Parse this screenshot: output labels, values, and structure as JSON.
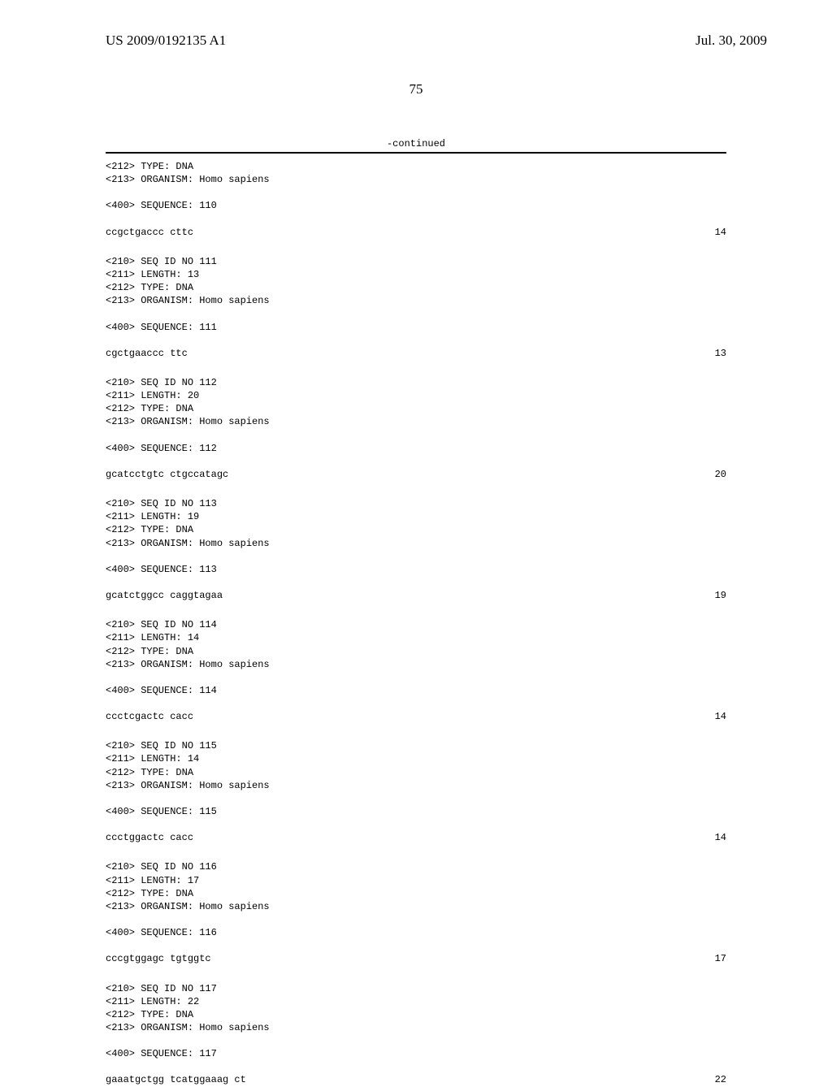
{
  "header": {
    "publication_number": "US 2009/0192135 A1",
    "date": "Jul. 30, 2009"
  },
  "page_number": "75",
  "continued_label": "-continued",
  "sequences": [
    {
      "header_lines": [
        "<212> TYPE: DNA",
        "<213> ORGANISM: Homo sapiens"
      ],
      "sequence_label": "<400> SEQUENCE: 110",
      "sequence_text": "ccgctgaccc cttc",
      "length": "14"
    },
    {
      "header_lines": [
        "<210> SEQ ID NO 111",
        "<211> LENGTH: 13",
        "<212> TYPE: DNA",
        "<213> ORGANISM: Homo sapiens"
      ],
      "sequence_label": "<400> SEQUENCE: 111",
      "sequence_text": "cgctgaaccc ttc",
      "length": "13"
    },
    {
      "header_lines": [
        "<210> SEQ ID NO 112",
        "<211> LENGTH: 20",
        "<212> TYPE: DNA",
        "<213> ORGANISM: Homo sapiens"
      ],
      "sequence_label": "<400> SEQUENCE: 112",
      "sequence_text": "gcatcctgtc ctgccatagc",
      "length": "20"
    },
    {
      "header_lines": [
        "<210> SEQ ID NO 113",
        "<211> LENGTH: 19",
        "<212> TYPE: DNA",
        "<213> ORGANISM: Homo sapiens"
      ],
      "sequence_label": "<400> SEQUENCE: 113",
      "sequence_text": "gcatctggcc caggtagaa",
      "length": "19"
    },
    {
      "header_lines": [
        "<210> SEQ ID NO 114",
        "<211> LENGTH: 14",
        "<212> TYPE: DNA",
        "<213> ORGANISM: Homo sapiens"
      ],
      "sequence_label": "<400> SEQUENCE: 114",
      "sequence_text": "ccctcgactc cacc",
      "length": "14"
    },
    {
      "header_lines": [
        "<210> SEQ ID NO 115",
        "<211> LENGTH: 14",
        "<212> TYPE: DNA",
        "<213> ORGANISM: Homo sapiens"
      ],
      "sequence_label": "<400> SEQUENCE: 115",
      "sequence_text": "ccctggactc cacc",
      "length": "14"
    },
    {
      "header_lines": [
        "<210> SEQ ID NO 116",
        "<211> LENGTH: 17",
        "<212> TYPE: DNA",
        "<213> ORGANISM: Homo sapiens"
      ],
      "sequence_label": "<400> SEQUENCE: 116",
      "sequence_text": "cccgtggagc tgtggtc",
      "length": "17"
    },
    {
      "header_lines": [
        "<210> SEQ ID NO 117",
        "<211> LENGTH: 22",
        "<212> TYPE: DNA",
        "<213> ORGANISM: Homo sapiens"
      ],
      "sequence_label": "<400> SEQUENCE: 117",
      "sequence_text": "gaaatgctgg tcatggaaag ct",
      "length": "22"
    }
  ]
}
